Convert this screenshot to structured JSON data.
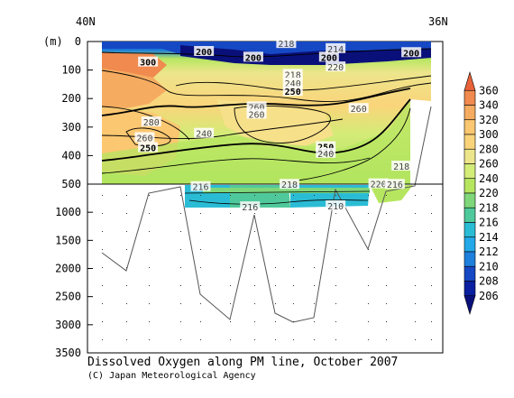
{
  "chart_data": {
    "type": "contour",
    "title": "Dissolved Oxygen along PM line, October 2007",
    "credit": "(C) Japan Meteorological Agency",
    "x_labels": {
      "left": "40N",
      "right": "36N"
    },
    "y_unit": "(m)",
    "y_axis": {
      "upper_panel_ticks": [
        0,
        100,
        200,
        300,
        400,
        500
      ],
      "lower_panel_ticks": [
        1000,
        1500,
        2000,
        2500,
        3000,
        3500
      ],
      "upper_range": [
        0,
        500
      ],
      "lower_range": [
        500,
        3500
      ]
    },
    "colorbar": {
      "labels": [
        360,
        340,
        320,
        300,
        280,
        260,
        240,
        220,
        218,
        216,
        214,
        212,
        210,
        208,
        206
      ],
      "colors": [
        "#e8623a",
        "#f08a4f",
        "#f5ab60",
        "#fbc770",
        "#fad47a",
        "#ede58c",
        "#d4ec78",
        "#b6e660",
        "#7fd77a",
        "#4fc99b",
        "#2bbcd5",
        "#23a8e8",
        "#1e7fdc",
        "#1648c4",
        "#0a20a0",
        "#0a107a"
      ]
    },
    "contour_labels": [
      {
        "text": "300",
        "x": 0.14,
        "z": 75,
        "bold": true
      },
      {
        "text": "200",
        "x": 0.31,
        "z": 38,
        "bold": true
      },
      {
        "text": "200",
        "x": 0.46,
        "z": 58,
        "bold": true
      },
      {
        "text": "200",
        "x": 0.69,
        "z": 58,
        "bold": true
      },
      {
        "text": "200",
        "x": 0.94,
        "z": 42,
        "bold": true
      },
      {
        "text": "218",
        "x": 0.56,
        "z": 10,
        "bold": false
      },
      {
        "text": "214",
        "x": 0.71,
        "z": 28,
        "bold": false
      },
      {
        "text": "220",
        "x": 0.71,
        "z": 92,
        "bold": false
      },
      {
        "text": "218",
        "x": 0.58,
        "z": 118,
        "bold": false
      },
      {
        "text": "240",
        "x": 0.58,
        "z": 148,
        "bold": false
      },
      {
        "text": "250",
        "x": 0.58,
        "z": 178,
        "bold": true
      },
      {
        "text": "260",
        "x": 0.47,
        "z": 232,
        "bold": false
      },
      {
        "text": "260",
        "x": 0.47,
        "z": 258,
        "bold": false
      },
      {
        "text": "280",
        "x": 0.15,
        "z": 285,
        "bold": false
      },
      {
        "text": "260",
        "x": 0.13,
        "z": 340,
        "bold": false
      },
      {
        "text": "250",
        "x": 0.14,
        "z": 375,
        "bold": true
      },
      {
        "text": "240",
        "x": 0.31,
        "z": 325,
        "bold": false
      },
      {
        "text": "260",
        "x": 0.78,
        "z": 238,
        "bold": false
      },
      {
        "text": "250",
        "x": 0.68,
        "z": 372,
        "bold": true
      },
      {
        "text": "240",
        "x": 0.68,
        "z": 395,
        "bold": false
      },
      {
        "text": "218",
        "x": 0.91,
        "z": 440,
        "bold": false
      }
    ],
    "deep_labels": [
      {
        "text": "216",
        "x": 0.3,
        "z": 560
      },
      {
        "text": "216",
        "x": 0.45,
        "z": 920
      },
      {
        "text": "218",
        "x": 0.57,
        "z": 520
      },
      {
        "text": "210",
        "x": 0.71,
        "z": 900
      },
      {
        "text": "220",
        "x": 0.84,
        "z": 510
      },
      {
        "text": "216",
        "x": 0.89,
        "z": 520
      }
    ]
  }
}
